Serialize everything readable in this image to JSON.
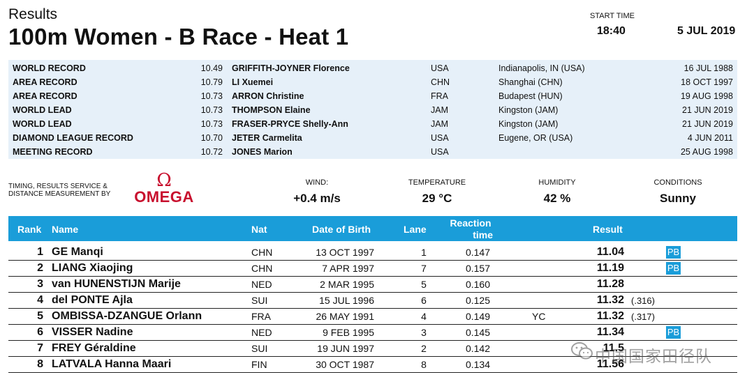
{
  "header": {
    "results_label": "Results",
    "event_title": "100m Women - B Race - Heat 1",
    "start_time_label": "START TIME",
    "start_time": "18:40",
    "date": "5 JUL 2019"
  },
  "records": [
    {
      "type": "WORLD RECORD",
      "time": "10.49",
      "name": "GRIFFITH-JOYNER Florence",
      "nat": "USA",
      "venue": "Indianapolis, IN (USA)",
      "date": "16 JUL 1988"
    },
    {
      "type": "AREA RECORD",
      "time": "10.79",
      "name": "LI Xuemei",
      "nat": "CHN",
      "venue": "Shanghai (CHN)",
      "date": "18 OCT 1997"
    },
    {
      "type": "AREA RECORD",
      "time": "10.73",
      "name": "ARRON Christine",
      "nat": "FRA",
      "venue": "Budapest (HUN)",
      "date": "19 AUG 1998"
    },
    {
      "type": "WORLD LEAD",
      "time": "10.73",
      "name": "THOMPSON Elaine",
      "nat": "JAM",
      "venue": "Kingston (JAM)",
      "date": "21 JUN 2019"
    },
    {
      "type": "WORLD LEAD",
      "time": "10.73",
      "name": "FRASER-PRYCE Shelly-Ann",
      "nat": "JAM",
      "venue": "Kingston (JAM)",
      "date": "21 JUN 2019"
    },
    {
      "type": "DIAMOND LEAGUE RECORD",
      "time": "10.70",
      "name": "JETER Carmelita",
      "nat": "USA",
      "venue": "Eugene, OR (USA)",
      "date": "4 JUN 2011"
    },
    {
      "type": "MEETING RECORD",
      "time": "10.72",
      "name": "JONES Marion",
      "nat": "USA",
      "venue": "",
      "date": "25 AUG 1998"
    }
  ],
  "timing": {
    "label_line1": "TIMING, RESULTS SERVICE &",
    "label_line2": "DISTANCE MEASUREMENT BY",
    "logo_symbol": "Ω",
    "logo_text": "OMEGA",
    "logo_color": "#c8102e"
  },
  "conditions": {
    "wind_label": "WIND:",
    "wind_value": "+0.4 m/s",
    "temperature_label": "TEMPERATURE",
    "temperature_value": "29 °C",
    "humidity_label": "HUMIDITY",
    "humidity_value": "42 %",
    "conditions_label": "CONDITIONS",
    "conditions_value": "Sunny"
  },
  "table": {
    "accent_color": "#1a9dd9",
    "columns": {
      "rank": "Rank",
      "name": "Name",
      "nat": "Nat",
      "dob": "Date of Birth",
      "lane": "Lane",
      "reaction_line1": "Reaction",
      "reaction_line2": "time",
      "result": "Result"
    },
    "rows": [
      {
        "rank": "1",
        "name": "GE Manqi",
        "nat": "CHN",
        "dob": "13 OCT 1997",
        "lane": "1",
        "reaction": "0.147",
        "note": "",
        "result": "11.04",
        "diff": "",
        "pb": "PB"
      },
      {
        "rank": "2",
        "name": "LIANG Xiaojing",
        "nat": "CHN",
        "dob": "7 APR 1997",
        "lane": "7",
        "reaction": "0.157",
        "note": "",
        "result": "11.19",
        "diff": "",
        "pb": "PB"
      },
      {
        "rank": "3",
        "name": "van HUNENSTIJN Marije",
        "nat": "NED",
        "dob": "2 MAR 1995",
        "lane": "5",
        "reaction": "0.160",
        "note": "",
        "result": "11.28",
        "diff": "",
        "pb": ""
      },
      {
        "rank": "4",
        "name": "del PONTE Ajla",
        "nat": "SUI",
        "dob": "15 JUL 1996",
        "lane": "6",
        "reaction": "0.125",
        "note": "",
        "result": "11.32",
        "diff": "(.316)",
        "pb": ""
      },
      {
        "rank": "5",
        "name": "OMBISSA-DZANGUE Orlann",
        "nat": "FRA",
        "dob": "26 MAY 1991",
        "lane": "4",
        "reaction": "0.149",
        "note": "YC",
        "result": "11.32",
        "diff": "(.317)",
        "pb": ""
      },
      {
        "rank": "6",
        "name": "VISSER Nadine",
        "nat": "NED",
        "dob": "9 FEB 1995",
        "lane": "3",
        "reaction": "0.145",
        "note": "",
        "result": "11.34",
        "diff": "",
        "pb": "PB"
      },
      {
        "rank": "7",
        "name": "FREY Géraldine",
        "nat": "SUI",
        "dob": "19 JUN 1997",
        "lane": "2",
        "reaction": "0.142",
        "note": "",
        "result": "11.5",
        "diff": "",
        "pb": ""
      },
      {
        "rank": "8",
        "name": "LATVALA Hanna Maari",
        "nat": "FIN",
        "dob": "30 OCT 1987",
        "lane": "8",
        "reaction": "0.134",
        "note": "",
        "result": "11.56",
        "diff": "",
        "pb": ""
      }
    ]
  },
  "watermark": {
    "icon": "wechat-icon",
    "text": "中国国家田径队"
  }
}
